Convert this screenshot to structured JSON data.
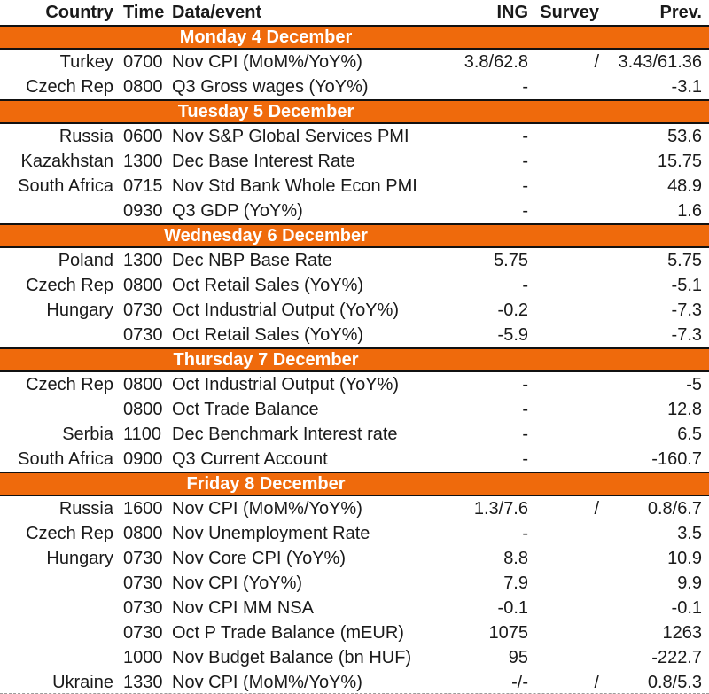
{
  "colors": {
    "accent_orange": "#ef6a0c",
    "band_text": "#ffffff",
    "body_text": "#1a1a1a",
    "band_border": "#111111",
    "bottom_dashed_border": "#9b9b9b"
  },
  "table": {
    "columns": {
      "country": "Country",
      "time": "Time",
      "event": "Data/event",
      "ing": "ING",
      "survey": "Survey",
      "prev": "Prev."
    },
    "sections": [
      {
        "day": "Monday 4 December",
        "rows": [
          {
            "country": "Turkey",
            "time": "0700",
            "event": "Nov CPI (MoM%/YoY%)",
            "ing": "3.8/62.8",
            "survey": "/",
            "prev": "3.43/61.36"
          },
          {
            "country": "Czech Rep",
            "time": "0800",
            "event": "Q3 Gross wages (YoY%)",
            "ing": "-",
            "survey": "",
            "prev": "-3.1"
          }
        ]
      },
      {
        "day": "Tuesday 5 December",
        "rows": [
          {
            "country": "Russia",
            "time": "0600",
            "event": "Nov S&P Global Services PMI",
            "ing": "-",
            "survey": "",
            "prev": "53.6"
          },
          {
            "country": "Kazakhstan",
            "time": "1300",
            "event": "Dec Base Interest Rate",
            "ing": "-",
            "survey": "",
            "prev": "15.75"
          },
          {
            "country": "South Africa",
            "time": "0715",
            "event": "Nov Std Bank Whole Econ PMI",
            "ing": "-",
            "survey": "",
            "prev": "48.9"
          },
          {
            "country": "",
            "time": "0930",
            "event": "Q3 GDP (YoY%)",
            "ing": "-",
            "survey": "",
            "prev": "1.6"
          }
        ]
      },
      {
        "day": "Wednesday 6 December",
        "rows": [
          {
            "country": "Poland",
            "time": "1300",
            "event": "Dec NBP Base Rate",
            "ing": "5.75",
            "survey": "",
            "prev": "5.75"
          },
          {
            "country": "Czech Rep",
            "time": "0800",
            "event": "Oct Retail Sales (YoY%)",
            "ing": "-",
            "survey": "",
            "prev": "-5.1"
          },
          {
            "country": "Hungary",
            "time": "0730",
            "event": "Oct Industrial Output (YoY%)",
            "ing": "-0.2",
            "survey": "",
            "prev": "-7.3"
          },
          {
            "country": "",
            "time": "0730",
            "event": "Oct Retail Sales (YoY%)",
            "ing": "-5.9",
            "survey": "",
            "prev": "-7.3"
          }
        ]
      },
      {
        "day": "Thursday 7 December",
        "rows": [
          {
            "country": "Czech Rep",
            "time": "0800",
            "event": "Oct Industrial Output (YoY%)",
            "ing": "-",
            "survey": "",
            "prev": "-5"
          },
          {
            "country": "",
            "time": "0800",
            "event": "Oct Trade Balance",
            "ing": "-",
            "survey": "",
            "prev": "12.8"
          },
          {
            "country": "Serbia",
            "time": "1100",
            "event": "Dec Benchmark Interest rate",
            "ing": "-",
            "survey": "",
            "prev": "6.5"
          },
          {
            "country": "South Africa",
            "time": "0900",
            "event": "Q3 Current Account",
            "ing": "-",
            "survey": "",
            "prev": "-160.7"
          }
        ]
      },
      {
        "day": "Friday 8 December",
        "rows": [
          {
            "country": "Russia",
            "time": "1600",
            "event": "Nov CPI (MoM%/YoY%)",
            "ing": "1.3/7.6",
            "survey": "/",
            "prev": "0.8/6.7"
          },
          {
            "country": "Czech Rep",
            "time": "0800",
            "event": "Nov Unemployment Rate",
            "ing": "-",
            "survey": "",
            "prev": "3.5"
          },
          {
            "country": "Hungary",
            "time": "0730",
            "event": "Nov Core CPI (YoY%)",
            "ing": "8.8",
            "survey": "",
            "prev": "10.9"
          },
          {
            "country": "",
            "time": "0730",
            "event": "Nov CPI (YoY%)",
            "ing": "7.9",
            "survey": "",
            "prev": "9.9"
          },
          {
            "country": "",
            "time": "0730",
            "event": "Nov CPI MM NSA",
            "ing": "-0.1",
            "survey": "",
            "prev": "-0.1"
          },
          {
            "country": "",
            "time": "0730",
            "event": "Oct P Trade Balance (mEUR)",
            "ing": "1075",
            "survey": "",
            "prev": "1263"
          },
          {
            "country": "",
            "time": "1000",
            "event": "Nov Budget Balance (bn HUF)",
            "ing": "95",
            "survey": "",
            "prev": "-222.7"
          },
          {
            "country": "Ukraine",
            "time": "1330",
            "event": "Nov CPI (MoM%/YoY%)",
            "ing": "-/-",
            "survey": "/",
            "prev": "0.8/5.3"
          }
        ]
      }
    ]
  }
}
